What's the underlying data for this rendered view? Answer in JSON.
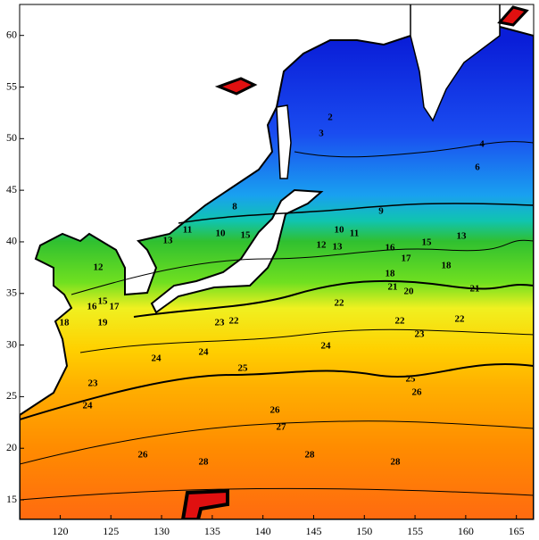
{
  "map": {
    "xlim": [
      116,
      166.7
    ],
    "ylim": [
      13.1,
      63
    ],
    "xticks": [
      120,
      125,
      130,
      135,
      140,
      145,
      150,
      155,
      160,
      165
    ],
    "yticks": [
      15,
      20,
      25,
      30,
      35,
      40,
      45,
      50,
      55,
      60
    ],
    "contour_labels": [
      "8",
      "11",
      "13",
      "10",
      "15",
      "12",
      "15",
      "16",
      "17",
      "18",
      "19",
      "23",
      "22",
      "24",
      "25",
      "24",
      "24",
      "23",
      "26",
      "27",
      "26",
      "28",
      "28",
      "22",
      "22",
      "22",
      "23",
      "24",
      "25",
      "26",
      "28",
      "10",
      "11",
      "12",
      "13",
      "16",
      "17",
      "15",
      "13",
      "18",
      "21",
      "20",
      "21",
      "18",
      "9",
      "6",
      "4",
      "3",
      "2"
    ]
  }
}
